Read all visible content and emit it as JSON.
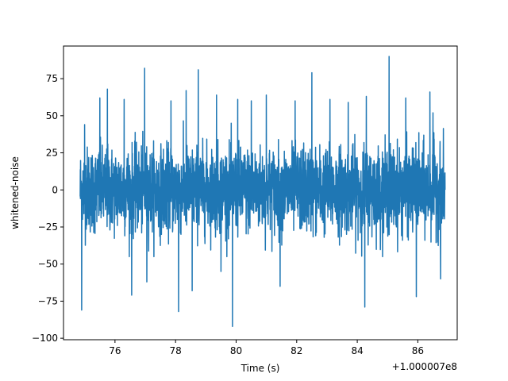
{
  "chart_data": {
    "type": "line",
    "title": "",
    "xlabel": "Time (s)",
    "ylabel": "whitened-noise",
    "x_offset_label": "+1.000007e8",
    "xlim": [
      74.3,
      87.3
    ],
    "ylim": [
      -101,
      97
    ],
    "xticks": [
      76,
      78,
      80,
      82,
      84,
      86
    ],
    "xtick_labels": [
      "76",
      "78",
      "80",
      "82",
      "84",
      "86"
    ],
    "yticks": [
      -100,
      -75,
      -50,
      -25,
      0,
      25,
      50,
      75
    ],
    "ytick_labels": [
      "−100",
      "−75",
      "−50",
      "−25",
      "0",
      "25",
      "50",
      "75"
    ],
    "grid": false,
    "series_color": "#1f77b4",
    "series": [
      {
        "x_range": [
          74.85,
          86.9
        ],
        "typical_band": [
          -37,
          39
        ],
        "spikes": [
          {
            "x": 74.9,
            "y": -81
          },
          {
            "x": 75.0,
            "y": 44
          },
          {
            "x": 75.5,
            "y": 62
          },
          {
            "x": 75.75,
            "y": 68
          },
          {
            "x": 76.3,
            "y": 61
          },
          {
            "x": 76.55,
            "y": -71
          },
          {
            "x": 76.98,
            "y": 82
          },
          {
            "x": 77.05,
            "y": -62
          },
          {
            "x": 77.85,
            "y": 60
          },
          {
            "x": 78.1,
            "y": -82
          },
          {
            "x": 78.35,
            "y": 67
          },
          {
            "x": 78.55,
            "y": -68
          },
          {
            "x": 78.75,
            "y": 81
          },
          {
            "x": 79.35,
            "y": 64
          },
          {
            "x": 79.5,
            "y": -55
          },
          {
            "x": 79.88,
            "y": -92
          },
          {
            "x": 80.05,
            "y": 61
          },
          {
            "x": 80.5,
            "y": 60
          },
          {
            "x": 81.0,
            "y": 64
          },
          {
            "x": 81.45,
            "y": -65
          },
          {
            "x": 81.95,
            "y": 60
          },
          {
            "x": 82.5,
            "y": 79
          },
          {
            "x": 83.1,
            "y": 61
          },
          {
            "x": 83.7,
            "y": 59
          },
          {
            "x": 84.25,
            "y": -79
          },
          {
            "x": 84.3,
            "y": 63
          },
          {
            "x": 85.05,
            "y": 90
          },
          {
            "x": 85.6,
            "y": 62
          },
          {
            "x": 85.95,
            "y": -72
          },
          {
            "x": 86.4,
            "y": 66
          },
          {
            "x": 86.5,
            "y": 52
          },
          {
            "x": 86.75,
            "y": -60
          }
        ]
      }
    ]
  }
}
